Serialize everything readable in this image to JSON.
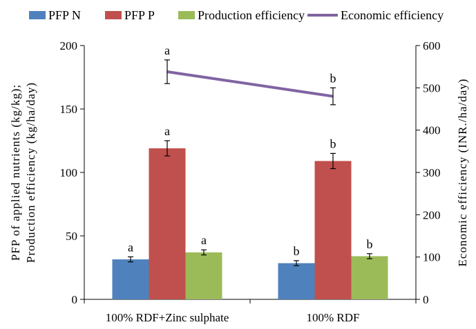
{
  "chart_data": {
    "type": "bar",
    "categories": [
      "100% RDF+Zinc sulphate",
      "100% RDF"
    ],
    "series": [
      {
        "name": "PFP N",
        "axis": "left",
        "kind": "bar",
        "color": "#4f81bd",
        "values": [
          31.5,
          28.5
        ],
        "errors": [
          2,
          2
        ],
        "sig": [
          "a",
          "b"
        ]
      },
      {
        "name": "PFP P",
        "axis": "left",
        "kind": "bar",
        "color": "#c0504d",
        "values": [
          119,
          109
        ],
        "errors": [
          6,
          6
        ],
        "sig": [
          "a",
          "b"
        ]
      },
      {
        "name": "Production efficiency",
        "axis": "left",
        "kind": "bar",
        "color": "#9bbb59",
        "values": [
          37,
          34
        ],
        "errors": [
          2,
          2
        ],
        "sig": [
          "a",
          "b"
        ]
      },
      {
        "name": "Economic efficiency",
        "axis": "right",
        "kind": "line",
        "color": "#8064a2",
        "values": [
          538,
          480
        ],
        "errors": [
          28,
          20
        ],
        "sig": [
          "a",
          "b"
        ]
      }
    ],
    "y_left": {
      "label_line1": "PFP of applied nutrients (kg/kg);",
      "label_line2": "Production efficiency (kg/ha/day)",
      "range": [
        0,
        200
      ],
      "ticks": [
        "0",
        "50",
        "100",
        "150",
        "200"
      ]
    },
    "y_right": {
      "label": "Economic efficiency (INR./ha/day)",
      "range": [
        0,
        600
      ],
      "ticks": [
        "0",
        "100",
        "200",
        "300",
        "400",
        "500",
        "600"
      ]
    },
    "legend_position": "top",
    "grid": false
  }
}
